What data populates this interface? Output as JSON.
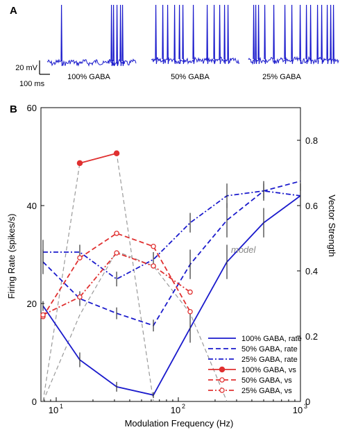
{
  "panel_a": {
    "label": "A",
    "scale_bar": {
      "voltage_label": "20 mV",
      "time_label": "100 ms"
    },
    "traces": [
      {
        "label": "100% GABA"
      },
      {
        "label": "50% GABA"
      },
      {
        "label": "25% GABA"
      }
    ],
    "trace_color": "#1a1acc"
  },
  "panel_b": {
    "label": "B",
    "annotation": "model"
  },
  "chart_data": {
    "type": "line",
    "x_scale": "log",
    "xlabel": "Modulation Frequency (Hz)",
    "ylabel_left": "Firing Rate (spikes/s)",
    "ylabel_right": "Vector Strength",
    "xlim": [
      7.5,
      1000
    ],
    "ylim_left": [
      0,
      60
    ],
    "ylim_right": [
      0,
      0.9
    ],
    "x_ticks": [
      10,
      100,
      1000
    ],
    "x_tick_labels": [
      {
        "base": "10",
        "exp": "1"
      },
      {
        "base": "10",
        "exp": "2"
      },
      {
        "base": "10",
        "exp": "3"
      }
    ],
    "y_ticks_left": [
      0,
      20,
      40,
      60
    ],
    "y_ticks_right": [
      0,
      0.2,
      0.4,
      0.6,
      0.8
    ],
    "y_tick_labels_left": [
      "0",
      "20",
      "40",
      "60"
    ],
    "y_tick_labels_right": [
      "0",
      "0.2",
      "0.4",
      "0.6",
      "0.8"
    ],
    "legend_position": "lower-right",
    "series": [
      {
        "name": "100% GABA, rate",
        "axis": "left",
        "color": "#1a1acc",
        "dash": "solid",
        "marker": "none",
        "x": [
          7.8,
          15.6,
          31.25,
          62.5,
          125,
          250,
          500,
          1000
        ],
        "y": [
          19.5,
          8.5,
          3,
          1.3,
          15,
          28.5,
          36.5,
          42
        ],
        "err": [
          1,
          1.5,
          1,
          0.6,
          3,
          3.5,
          3,
          2.5
        ]
      },
      {
        "name": "50% GABA, rate",
        "axis": "left",
        "color": "#1a1acc",
        "dash": "dashed",
        "marker": "none",
        "x": [
          7.8,
          15.6,
          31.25,
          62.5,
          125,
          250,
          500,
          1000
        ],
        "y": [
          28.5,
          21,
          18,
          15.5,
          28,
          37,
          43,
          45
        ],
        "err": [
          2.5,
          1.5,
          1.2,
          1.2,
          3,
          3.5,
          2,
          2
        ]
      },
      {
        "name": "25% GABA, rate",
        "axis": "left",
        "color": "#1a1acc",
        "dash": "dashdot",
        "marker": "none",
        "x": [
          7.8,
          15.6,
          31.25,
          62.5,
          125,
          250,
          500,
          1000
        ],
        "y": [
          30.5,
          30.5,
          25,
          29,
          36.5,
          42,
          43,
          42
        ],
        "err": [
          2.5,
          1.5,
          1.5,
          1.5,
          2,
          2.5,
          1.5,
          2.5
        ]
      },
      {
        "name": "100% GABA, vs",
        "axis": "right",
        "color": "#e03030",
        "dash": "solid",
        "marker": "filled-circle",
        "x": [
          15.6,
          31.25
        ],
        "y": [
          0.73,
          0.76
        ]
      },
      {
        "name": "50% GABA, vs",
        "axis": "right",
        "color": "#e03030",
        "dash": "dashed",
        "marker": "open-circle",
        "x": [
          7.8,
          15.6,
          31.25,
          62.5,
          125
        ],
        "y": [
          0.26,
          0.44,
          0.515,
          0.475,
          0.275
        ]
      },
      {
        "name": "25% GABA, vs",
        "axis": "right",
        "color": "#e03030",
        "dash": "dashdot",
        "marker": "open-circle",
        "x": [
          7.8,
          15.6,
          31.25,
          62.5,
          125
        ],
        "y": [
          0.265,
          0.32,
          0.455,
          0.415,
          0.335
        ]
      }
    ],
    "model_lines": [
      {
        "color": "#999999",
        "dash": "dashed",
        "x": [
          7.8,
          15.6,
          31.25,
          62.5
        ],
        "y": [
          0,
          0.73,
          0.76,
          0
        ]
      },
      {
        "color": "#999999",
        "dash": "dashed",
        "x": [
          7.8,
          15.6,
          31.25,
          62.5,
          125,
          250
        ],
        "y": [
          0,
          0.265,
          0.46,
          0.415,
          0.27,
          0
        ]
      }
    ]
  }
}
